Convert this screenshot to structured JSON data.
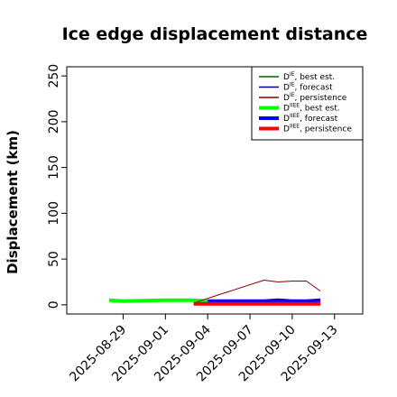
{
  "chart_data": {
    "type": "line",
    "title": "Ice edge displacement distance",
    "xlabel": "",
    "ylabel": "Displacement (km)",
    "xlim": [
      "2025-08-25",
      "2025-09-15"
    ],
    "ylim": [
      -10,
      260
    ],
    "yticks": [
      0,
      50,
      100,
      150,
      200,
      250
    ],
    "xticks": [
      "2025-08-29",
      "2025-09-01",
      "2025-09-04",
      "2025-09-07",
      "2025-09-10",
      "2025-09-13"
    ],
    "highlight_tick": "2025-09-04",
    "highlight_color": "#228B22",
    "legend_position": "top-right",
    "legend": [
      {
        "base": "D",
        "sup": "IE",
        "text": ", best est.",
        "color": "#006400",
        "width": 1.5
      },
      {
        "base": "D",
        "sup": "IE",
        "text": ", forecast",
        "color": "#00008B",
        "width": 1.5
      },
      {
        "base": "D",
        "sup": "IE",
        "text": ", persistence",
        "color": "#8B0000",
        "width": 1.5
      },
      {
        "base": "D",
        "sup": "IIEE",
        "text": ", best est.",
        "color": "#00FF00",
        "width": 4
      },
      {
        "base": "D",
        "sup": "IIEE",
        "text": ", forecast",
        "color": "#0000FF",
        "width": 4
      },
      {
        "base": "D",
        "sup": "IIEE",
        "text": ", persistence",
        "color": "#FF0000",
        "width": 4
      }
    ],
    "series": [
      {
        "color": "#00FF00",
        "width": 4,
        "x": [
          "2025-08-28",
          "2025-08-29",
          "2025-09-01",
          "2025-09-02",
          "2025-09-03",
          "2025-09-04"
        ],
        "y": [
          5,
          4,
          5,
          5,
          5,
          4
        ]
      },
      {
        "color": "#8B0000",
        "width": 1,
        "x": [
          "2025-09-03",
          "2025-09-08",
          "2025-09-09",
          "2025-09-10",
          "2025-09-11",
          "2025-09-12"
        ],
        "y": [
          2,
          27,
          25,
          26,
          26,
          15
        ]
      },
      {
        "color": "#0000FF",
        "width": 4,
        "x": [
          "2025-09-04",
          "2025-09-05",
          "2025-09-08",
          "2025-09-09",
          "2025-09-10",
          "2025-09-11",
          "2025-09-12"
        ],
        "y": [
          4,
          4,
          4,
          5,
          4,
          4,
          5
        ]
      },
      {
        "color": "#FF0000",
        "width": 4,
        "x": [
          "2025-09-03",
          "2025-09-04",
          "2025-09-05",
          "2025-09-08",
          "2025-09-09",
          "2025-09-10",
          "2025-09-11",
          "2025-09-12"
        ],
        "y": [
          1,
          1,
          1,
          1,
          1,
          1,
          1,
          1
        ]
      }
    ]
  }
}
